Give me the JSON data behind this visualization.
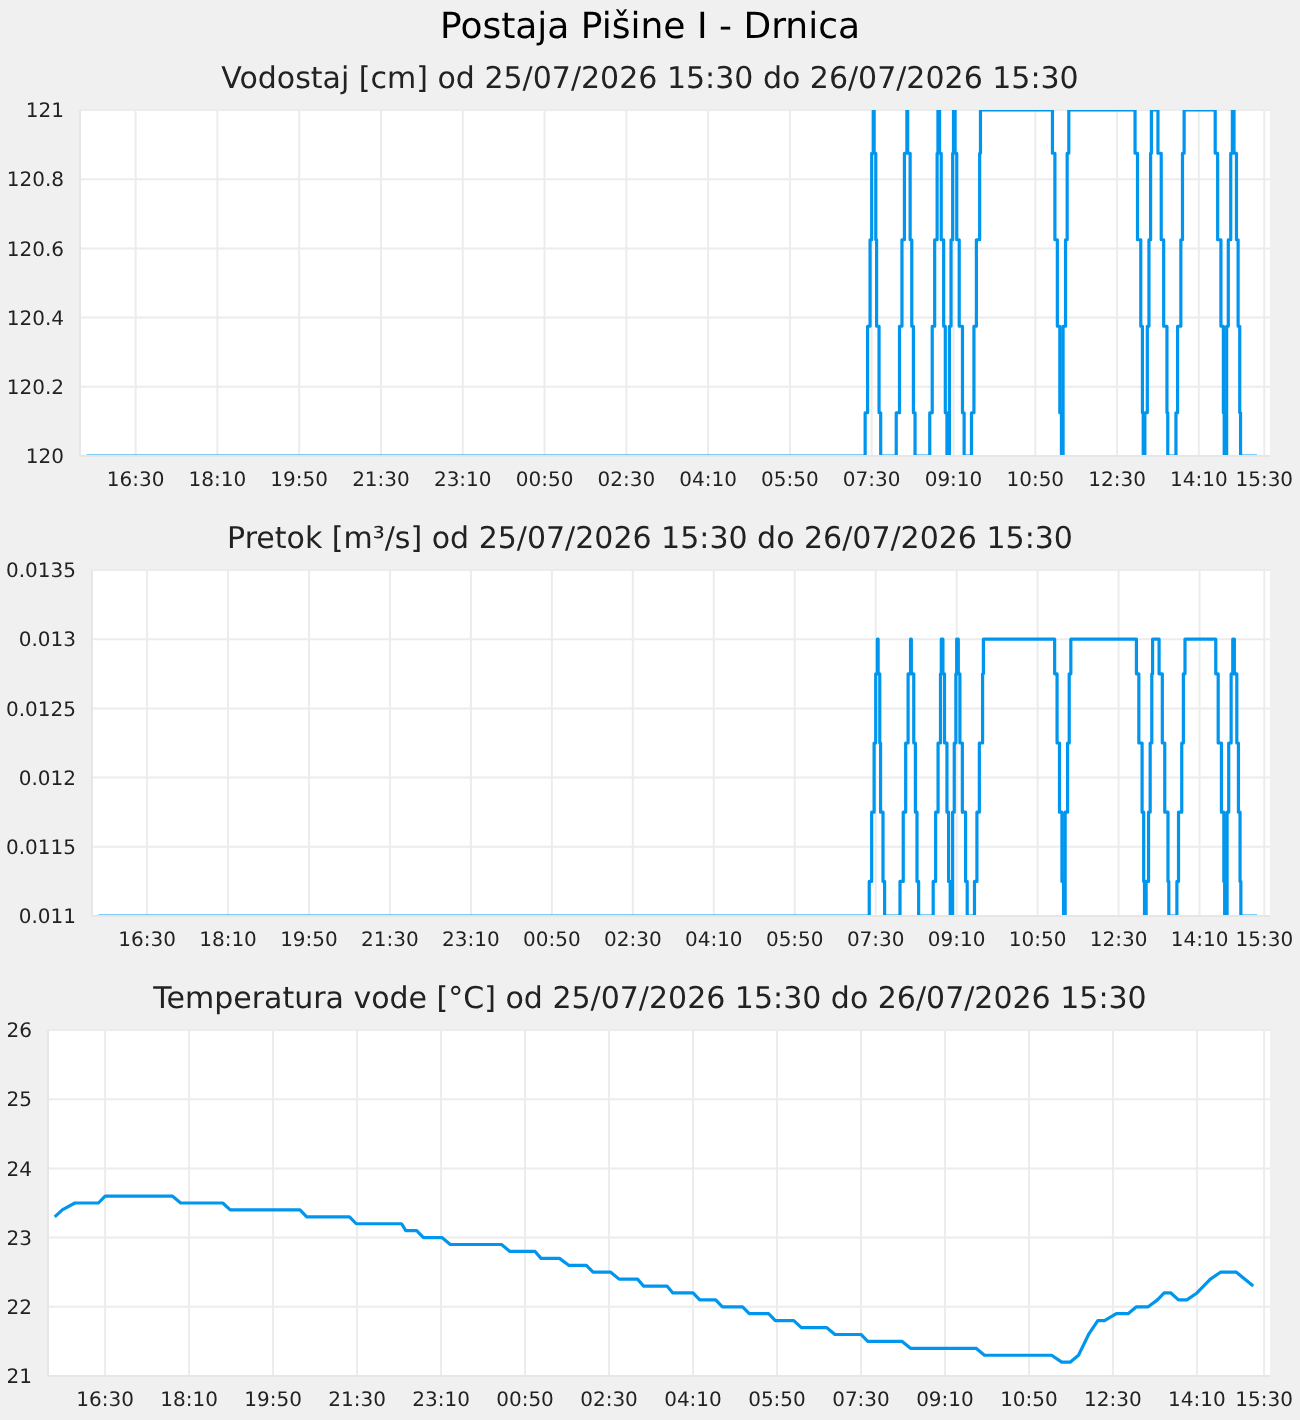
{
  "chart_data": [
    {
      "type": "step",
      "title": "Postaja Pišine I - Drnica",
      "subtitle": "Vodostaj [cm] od 25/07/2026 15:30 do 26/07/2026 15:30",
      "x": [
        "2026-07-25T15:30",
        "2026-07-26T07:22",
        "2026-07-26T07:25",
        "2026-07-26T07:28",
        "2026-07-26T07:30",
        "2026-07-26T07:32",
        "2026-07-26T07:33",
        "2026-07-26T07:35",
        "2026-07-26T07:36",
        "2026-07-26T07:39",
        "2026-07-26T07:41",
        "2026-07-26T08:00",
        "2026-07-26T08:04",
        "2026-07-26T08:07",
        "2026-07-26T08:10",
        "2026-07-26T08:13",
        "2026-07-26T08:14",
        "2026-07-26T08:17",
        "2026-07-26T08:19",
        "2026-07-26T08:21",
        "2026-07-26T08:23",
        "2026-07-26T08:41",
        "2026-07-26T08:44",
        "2026-07-26T08:47",
        "2026-07-26T08:50",
        "2026-07-26T08:51",
        "2026-07-26T08:53",
        "2026-07-26T08:55",
        "2026-07-26T08:58",
        "2026-07-26T09:00",
        "2026-07-26T09:02",
        "2026-07-26T09:05",
        "2026-07-26T09:07",
        "2026-07-26T09:09",
        "2026-07-26T09:10",
        "2026-07-26T09:12",
        "2026-07-26T09:14",
        "2026-07-26T09:17",
        "2026-07-26T09:21",
        "2026-07-26T09:23",
        "2026-07-26T09:32",
        "2026-07-26T09:35",
        "2026-07-26T09:38",
        "2026-07-26T09:42",
        "2026-07-26T09:43",
        "2026-07-26T11:11",
        "2026-07-26T11:14",
        "2026-07-26T11:17",
        "2026-07-26T11:20",
        "2026-07-26T11:22",
        "2026-07-26T11:24",
        "2026-07-26T11:27",
        "2026-07-26T11:29",
        "2026-07-26T11:31",
        "2026-07-26T12:52",
        "2026-07-26T12:55",
        "2026-07-26T12:59",
        "2026-07-26T13:01",
        "2026-07-26T13:02",
        "2026-07-26T13:04",
        "2026-07-26T13:07",
        "2026-07-26T13:09",
        "2026-07-26T13:11",
        "2026-07-26T13:12",
        "2026-07-26T13:20",
        "2026-07-26T13:24",
        "2026-07-26T13:27",
        "2026-07-26T13:31",
        "2026-07-26T13:32",
        "2026-07-26T13:42",
        "2026-07-26T13:44",
        "2026-07-26T13:48",
        "2026-07-26T13:50",
        "2026-07-26T13:52",
        "2026-07-26T14:30",
        "2026-07-26T14:33",
        "2026-07-26T14:37",
        "2026-07-26T14:40",
        "2026-07-26T14:41",
        "2026-07-26T14:44",
        "2026-07-26T14:46",
        "2026-07-26T14:49",
        "2026-07-26T14:51",
        "2026-07-26T14:53",
        "2026-07-26T14:56",
        "2026-07-26T14:58",
        "2026-07-26T15:00",
        "2026-07-26T15:01",
        "2026-07-26T15:21"
      ],
      "series": [
        {
          "color": "#0096ee",
          "values": [
            120,
            120.125,
            120.375,
            120.625,
            120.875,
            121,
            120.875,
            120.625,
            120.375,
            120.125,
            120,
            120.125,
            120.375,
            120.625,
            120.875,
            121,
            120.875,
            120.625,
            120.375,
            120.125,
            120,
            120.125,
            120.375,
            120.625,
            120.875,
            121,
            120.875,
            120.625,
            120.375,
            120.125,
            120,
            120.375,
            120.625,
            120.875,
            121,
            120.875,
            120.625,
            120.375,
            120.125,
            120,
            120.125,
            120.375,
            120.625,
            120.875,
            121,
            120.875,
            120.625,
            120.375,
            120.125,
            120,
            120.375,
            120.625,
            120.875,
            121,
            120.875,
            120.625,
            120.375,
            120.125,
            120,
            120.125,
            120.375,
            120.625,
            120.875,
            121,
            120.875,
            120.625,
            120.375,
            120.125,
            120,
            120.125,
            120.375,
            120.625,
            120.875,
            121,
            120.875,
            120.625,
            120.375,
            120.125,
            120,
            120.375,
            120.625,
            120.875,
            121,
            120.875,
            120.625,
            120.375,
            120.125,
            120,
            120
          ]
        }
      ],
      "xlim": [
        "2026-07-25T15:22",
        "2026-07-26T15:37"
      ],
      "xticks": [
        {
          "value": "2026-07-25T16:30",
          "label": "16:30"
        },
        {
          "value": "2026-07-25T18:10",
          "label": "18:10"
        },
        {
          "value": "2026-07-25T19:50",
          "label": "19:50"
        },
        {
          "value": "2026-07-25T21:30",
          "label": "21:30"
        },
        {
          "value": "2026-07-25T23:10",
          "label": "23:10"
        },
        {
          "value": "2026-07-26T00:50",
          "label": "00:50"
        },
        {
          "value": "2026-07-26T02:30",
          "label": "02:30"
        },
        {
          "value": "2026-07-26T04:10",
          "label": "04:10"
        },
        {
          "value": "2026-07-26T05:50",
          "label": "05:50"
        },
        {
          "value": "2026-07-26T07:30",
          "label": "07:30"
        },
        {
          "value": "2026-07-26T09:10",
          "label": "09:10"
        },
        {
          "value": "2026-07-26T10:50",
          "label": "10:50"
        },
        {
          "value": "2026-07-26T12:30",
          "label": "12:30"
        },
        {
          "value": "2026-07-26T14:10",
          "label": "14:10"
        },
        {
          "value": "2026-07-26T15:30",
          "label": "15:30"
        }
      ],
      "ylim": [
        120,
        121
      ],
      "yticks": [
        120,
        120.2,
        120.4,
        120.6,
        120.8,
        121
      ],
      "grid": true
    },
    {
      "type": "step",
      "title": "Pretok [m³/s] od 25/07/2026 15:30 do 26/07/2026 15:30",
      "x": [
        "2026-07-25T15:30",
        "2026-07-26T07:22",
        "2026-07-26T07:25",
        "2026-07-26T07:28",
        "2026-07-26T07:30",
        "2026-07-26T07:32",
        "2026-07-26T07:33",
        "2026-07-26T07:35",
        "2026-07-26T07:36",
        "2026-07-26T07:39",
        "2026-07-26T07:41",
        "2026-07-26T08:00",
        "2026-07-26T08:04",
        "2026-07-26T08:07",
        "2026-07-26T08:10",
        "2026-07-26T08:13",
        "2026-07-26T08:14",
        "2026-07-26T08:17",
        "2026-07-26T08:19",
        "2026-07-26T08:21",
        "2026-07-26T08:23",
        "2026-07-26T08:41",
        "2026-07-26T08:44",
        "2026-07-26T08:47",
        "2026-07-26T08:50",
        "2026-07-26T08:51",
        "2026-07-26T08:53",
        "2026-07-26T08:55",
        "2026-07-26T08:58",
        "2026-07-26T09:00",
        "2026-07-26T09:02",
        "2026-07-26T09:05",
        "2026-07-26T09:07",
        "2026-07-26T09:09",
        "2026-07-26T09:10",
        "2026-07-26T09:12",
        "2026-07-26T09:14",
        "2026-07-26T09:17",
        "2026-07-26T09:21",
        "2026-07-26T09:23",
        "2026-07-26T09:32",
        "2026-07-26T09:35",
        "2026-07-26T09:38",
        "2026-07-26T09:42",
        "2026-07-26T09:43",
        "2026-07-26T11:11",
        "2026-07-26T11:14",
        "2026-07-26T11:17",
        "2026-07-26T11:20",
        "2026-07-26T11:22",
        "2026-07-26T11:24",
        "2026-07-26T11:27",
        "2026-07-26T11:29",
        "2026-07-26T11:31",
        "2026-07-26T12:52",
        "2026-07-26T12:55",
        "2026-07-26T12:59",
        "2026-07-26T13:01",
        "2026-07-26T13:02",
        "2026-07-26T13:04",
        "2026-07-26T13:07",
        "2026-07-26T13:09",
        "2026-07-26T13:11",
        "2026-07-26T13:12",
        "2026-07-26T13:20",
        "2026-07-26T13:24",
        "2026-07-26T13:27",
        "2026-07-26T13:31",
        "2026-07-26T13:32",
        "2026-07-26T13:42",
        "2026-07-26T13:44",
        "2026-07-26T13:48",
        "2026-07-26T13:50",
        "2026-07-26T13:52",
        "2026-07-26T14:30",
        "2026-07-26T14:33",
        "2026-07-26T14:37",
        "2026-07-26T14:40",
        "2026-07-26T14:41",
        "2026-07-26T14:44",
        "2026-07-26T14:46",
        "2026-07-26T14:49",
        "2026-07-26T14:51",
        "2026-07-26T14:53",
        "2026-07-26T14:56",
        "2026-07-26T14:58",
        "2026-07-26T15:00",
        "2026-07-26T15:01",
        "2026-07-26T15:21"
      ],
      "series": [
        {
          "color": "#0096ee",
          "values": [
            0.011,
            0.01125,
            0.01175,
            0.01225,
            0.01275,
            0.013,
            0.01275,
            0.01225,
            0.01175,
            0.01125,
            0.011,
            0.01125,
            0.01175,
            0.01225,
            0.01275,
            0.013,
            0.01275,
            0.01225,
            0.01175,
            0.01125,
            0.011,
            0.01125,
            0.01175,
            0.01225,
            0.01275,
            0.013,
            0.01275,
            0.01225,
            0.01175,
            0.01125,
            0.011,
            0.01175,
            0.01225,
            0.01275,
            0.013,
            0.01275,
            0.01225,
            0.01175,
            0.01125,
            0.011,
            0.01125,
            0.01175,
            0.01225,
            0.01275,
            0.013,
            0.01275,
            0.01225,
            0.01175,
            0.01125,
            0.011,
            0.01175,
            0.01225,
            0.01275,
            0.013,
            0.01275,
            0.01225,
            0.01175,
            0.01125,
            0.011,
            0.01125,
            0.01175,
            0.01225,
            0.01275,
            0.013,
            0.01275,
            0.01225,
            0.01175,
            0.01125,
            0.011,
            0.01125,
            0.01175,
            0.01225,
            0.01275,
            0.013,
            0.01275,
            0.01225,
            0.01175,
            0.01125,
            0.011,
            0.01175,
            0.01225,
            0.01275,
            0.013,
            0.01275,
            0.01225,
            0.01175,
            0.01125,
            0.011,
            0.011
          ]
        }
      ],
      "xlim": [
        "2026-07-25T15:22",
        "2026-07-26T15:37"
      ],
      "xticks": [
        {
          "value": "2026-07-25T16:30",
          "label": "16:30"
        },
        {
          "value": "2026-07-25T18:10",
          "label": "18:10"
        },
        {
          "value": "2026-07-25T19:50",
          "label": "19:50"
        },
        {
          "value": "2026-07-25T21:30",
          "label": "21:30"
        },
        {
          "value": "2026-07-25T23:10",
          "label": "23:10"
        },
        {
          "value": "2026-07-26T00:50",
          "label": "00:50"
        },
        {
          "value": "2026-07-26T02:30",
          "label": "02:30"
        },
        {
          "value": "2026-07-26T04:10",
          "label": "04:10"
        },
        {
          "value": "2026-07-26T05:50",
          "label": "05:50"
        },
        {
          "value": "2026-07-26T07:30",
          "label": "07:30"
        },
        {
          "value": "2026-07-26T09:10",
          "label": "09:10"
        },
        {
          "value": "2026-07-26T10:50",
          "label": "10:50"
        },
        {
          "value": "2026-07-26T12:30",
          "label": "12:30"
        },
        {
          "value": "2026-07-26T14:10",
          "label": "14:10"
        },
        {
          "value": "2026-07-26T15:30",
          "label": "15:30"
        }
      ],
      "ylim": [
        0.011,
        0.0135
      ],
      "yticks": [
        0.011,
        0.0115,
        0.012,
        0.0125,
        0.013,
        0.0135
      ],
      "grid": true
    },
    {
      "type": "line",
      "title": "Temperatura vode [°C] od 25/07/2026 15:30 do 26/07/2026 15:30",
      "x": [
        "2026-07-25T15:30",
        "2026-07-25T15:39",
        "2026-07-25T15:54",
        "2026-07-25T16:22",
        "2026-07-25T16:30",
        "2026-07-25T17:50",
        "2026-07-25T18:00",
        "2026-07-25T18:50",
        "2026-07-25T18:59",
        "2026-07-25T20:22",
        "2026-07-25T20:30",
        "2026-07-25T21:21",
        "2026-07-25T21:29",
        "2026-07-25T22:23",
        "2026-07-25T22:28",
        "2026-07-25T22:41",
        "2026-07-25T22:49",
        "2026-07-25T23:11",
        "2026-07-25T23:21",
        "2026-07-26T00:22",
        "2026-07-26T00:32",
        "2026-07-26T01:02",
        "2026-07-26T01:09",
        "2026-07-26T01:31",
        "2026-07-26T01:42",
        "2026-07-26T02:03",
        "2026-07-26T02:11",
        "2026-07-26T02:32",
        "2026-07-26T02:42",
        "2026-07-26T03:04",
        "2026-07-26T03:11",
        "2026-07-26T03:39",
        "2026-07-26T03:46",
        "2026-07-26T04:10",
        "2026-07-26T04:18",
        "2026-07-26T04:37",
        "2026-07-26T04:45",
        "2026-07-26T05:09",
        "2026-07-26T05:17",
        "2026-07-26T05:40",
        "2026-07-26T05:48",
        "2026-07-26T06:10",
        "2026-07-26T06:19",
        "2026-07-26T06:49",
        "2026-07-26T06:59",
        "2026-07-26T07:30",
        "2026-07-26T07:38",
        "2026-07-26T08:19",
        "2026-07-26T08:29",
        "2026-07-26T09:47",
        "2026-07-26T09:57",
        "2026-07-26T11:17",
        "2026-07-26T11:29",
        "2026-07-26T11:39",
        "2026-07-26T11:49",
        "2026-07-26T12:01",
        "2026-07-26T12:12",
        "2026-07-26T12:20",
        "2026-07-26T12:34",
        "2026-07-26T12:48",
        "2026-07-26T12:58",
        "2026-07-26T13:12",
        "2026-07-26T13:23",
        "2026-07-26T13:31",
        "2026-07-26T13:39",
        "2026-07-26T13:48",
        "2026-07-26T13:58",
        "2026-07-26T14:10",
        "2026-07-26T14:26",
        "2026-07-26T14:38",
        "2026-07-26T14:57",
        "2026-07-26T15:17"
      ],
      "series": [
        {
          "color": "#0096ee",
          "values": [
            23.3,
            23.4,
            23.5,
            23.5,
            23.6,
            23.6,
            23.5,
            23.5,
            23.4,
            23.4,
            23.3,
            23.3,
            23.2,
            23.2,
            23.1,
            23.1,
            23.0,
            23.0,
            22.9,
            22.9,
            22.8,
            22.8,
            22.7,
            22.7,
            22.6,
            22.6,
            22.5,
            22.5,
            22.4,
            22.4,
            22.3,
            22.3,
            22.2,
            22.2,
            22.1,
            22.1,
            22.0,
            22.0,
            21.9,
            21.9,
            21.8,
            21.8,
            21.7,
            21.7,
            21.6,
            21.6,
            21.5,
            21.5,
            21.4,
            21.4,
            21.3,
            21.3,
            21.2,
            21.2,
            21.3,
            21.6,
            21.8,
            21.8,
            21.9,
            21.9,
            22.0,
            22.0,
            22.1,
            22.2,
            22.2,
            22.1,
            22.1,
            22.2,
            22.4,
            22.5,
            22.5,
            22.3
          ]
        }
      ],
      "xlim": [
        "2026-07-25T15:22",
        "2026-07-26T15:37"
      ],
      "xticks": [
        {
          "value": "2026-07-25T16:30",
          "label": "16:30"
        },
        {
          "value": "2026-07-25T18:10",
          "label": "18:10"
        },
        {
          "value": "2026-07-25T19:50",
          "label": "19:50"
        },
        {
          "value": "2026-07-25T21:30",
          "label": "21:30"
        },
        {
          "value": "2026-07-25T23:10",
          "label": "23:10"
        },
        {
          "value": "2026-07-26T00:50",
          "label": "00:50"
        },
        {
          "value": "2026-07-26T02:30",
          "label": "02:30"
        },
        {
          "value": "2026-07-26T04:10",
          "label": "04:10"
        },
        {
          "value": "2026-07-26T05:50",
          "label": "05:50"
        },
        {
          "value": "2026-07-26T07:30",
          "label": "07:30"
        },
        {
          "value": "2026-07-26T09:10",
          "label": "09:10"
        },
        {
          "value": "2026-07-26T10:50",
          "label": "10:50"
        },
        {
          "value": "2026-07-26T12:30",
          "label": "12:30"
        },
        {
          "value": "2026-07-26T14:10",
          "label": "14:10"
        },
        {
          "value": "2026-07-26T15:30",
          "label": "15:30"
        }
      ],
      "ylim": [
        21,
        26
      ],
      "yticks": [
        21,
        22,
        23,
        24,
        25,
        26
      ],
      "grid": true
    }
  ]
}
